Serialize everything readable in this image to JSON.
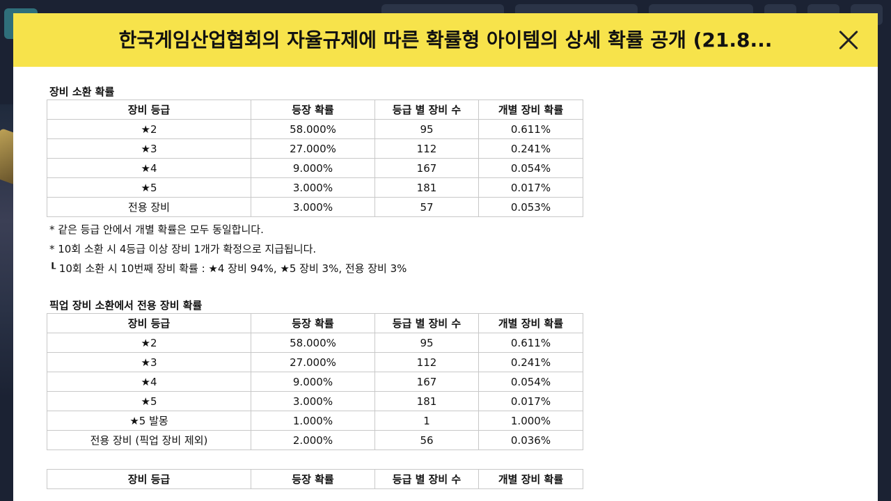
{
  "header": {
    "title": "한국게임산업협회의 자율규제에 따른 확률형 아이템의 상세 확률 공개 (21.8..."
  },
  "icons": {
    "close": "close-icon"
  },
  "columns": [
    "장비 등급",
    "등장 확률",
    "등급 별 장비 수",
    "개별 장비 확률"
  ],
  "section1": {
    "title": "장비 소환 확률",
    "rows": [
      [
        "★2",
        "58.000%",
        "95",
        "0.611%"
      ],
      [
        "★3",
        "27.000%",
        "112",
        "0.241%"
      ],
      [
        "★4",
        "9.000%",
        "167",
        "0.054%"
      ],
      [
        "★5",
        "3.000%",
        "181",
        "0.017%"
      ],
      [
        "전용 장비",
        "3.000%",
        "57",
        "0.053%"
      ]
    ],
    "notes": [
      "* 같은 등급 안에서 개별 확률은 모두 동일합니다.",
      "* 10회 소환 시 4등급 이상 장비 1개가 확정으로 지급됩니다.",
      "┖ 10회 소환 시 10번째 장비 확률 : ★4 장비 94%, ★5 장비 3%, 전용 장비 3%"
    ]
  },
  "section2": {
    "title": "픽업 장비 소환에서 전용 장비 확률",
    "rows": [
      [
        "★2",
        "58.000%",
        "95",
        "0.611%"
      ],
      [
        "★3",
        "27.000%",
        "112",
        "0.241%"
      ],
      [
        "★4",
        "9.000%",
        "167",
        "0.054%"
      ],
      [
        "★5",
        "3.000%",
        "181",
        "0.017%"
      ],
      [
        "★5 발몽",
        "1.000%",
        "1",
        "1.000%"
      ],
      [
        "전용 장비 (픽업 장비 제외)",
        "2.000%",
        "56",
        "0.036%"
      ]
    ]
  },
  "section3": {
    "columns": [
      "장비 등급",
      "등장 확률",
      "등급 별 장비 수",
      "개별 장비 확률"
    ]
  }
}
